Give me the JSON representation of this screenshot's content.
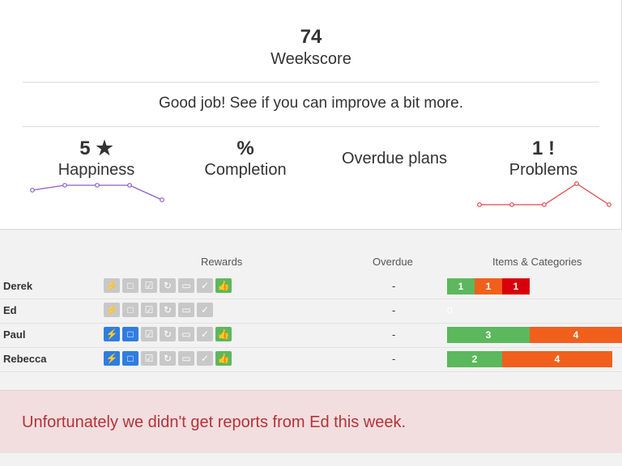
{
  "summary": {
    "weekscore": "74",
    "weekscore_label": "Weekscore",
    "message": "Good job! See if you can improve a bit more."
  },
  "metrics": [
    {
      "value": "5 ★",
      "label": "Happiness",
      "trend": [
        3,
        4,
        4,
        4,
        1
      ],
      "color": "#8e5cc7"
    },
    {
      "value": "%",
      "label": "Completion"
    },
    {
      "value": "",
      "label": "Overdue plans"
    },
    {
      "value": "1 !",
      "label": "Problems",
      "trend": [
        0,
        0,
        0,
        4,
        0
      ],
      "color": "#e04848"
    }
  ],
  "table": {
    "headers": {
      "rewards": "Rewards",
      "overdue": "Overdue",
      "items": "Items & Categories"
    },
    "rows": [
      {
        "name": "Derek",
        "overdue": "-",
        "rewards": [
          "grey",
          "grey",
          "grey",
          "grey",
          "grey",
          "grey",
          "green"
        ],
        "bars": [
          {
            "value": "1",
            "color": "g"
          },
          {
            "value": "1",
            "color": "o"
          },
          {
            "value": "1",
            "color": "r"
          }
        ]
      },
      {
        "name": "Ed",
        "overdue": "-",
        "rewards": [
          "grey",
          "grey",
          "grey",
          "grey",
          "grey",
          "grey"
        ],
        "bars": [],
        "empty": "0"
      },
      {
        "name": "Paul",
        "overdue": "-",
        "rewards": [
          "blue",
          "blue",
          "grey",
          "grey",
          "grey",
          "grey",
          "green"
        ],
        "bars": [
          {
            "value": "3",
            "color": "g"
          },
          {
            "value": "4",
            "color": "o"
          }
        ]
      },
      {
        "name": "Rebecca",
        "overdue": "-",
        "rewards": [
          "blue",
          "blue",
          "grey",
          "grey",
          "grey",
          "grey",
          "green"
        ],
        "bars": [
          {
            "value": "2",
            "color": "g"
          },
          {
            "value": "4",
            "color": "o"
          }
        ]
      }
    ],
    "reward_icons": [
      "bolt-icon",
      "square-icon",
      "checkbox-icon",
      "refresh-icon",
      "chat-icon",
      "check-icon",
      "thumbs-up-icon"
    ],
    "reward_glyphs": [
      "⚡",
      "□",
      "☑",
      "↻",
      "▭",
      "✓",
      "👍"
    ]
  },
  "alert": {
    "text": "Unfortunately we didn't get reports from Ed this week."
  }
}
